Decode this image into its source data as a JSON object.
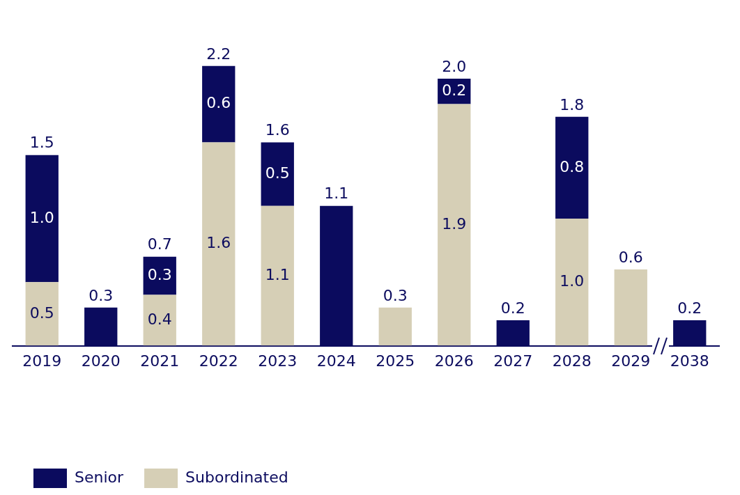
{
  "chart_data": {
    "type": "bar",
    "stacked": true,
    "categories": [
      "2019",
      "2020",
      "2021",
      "2022",
      "2023",
      "2024",
      "2025",
      "2026",
      "2027",
      "2028",
      "2029",
      "2038"
    ],
    "series": [
      {
        "name": "Subordinated",
        "color": "#d6cfb6",
        "values": [
          0.5,
          null,
          0.4,
          1.6,
          1.1,
          null,
          0.3,
          1.9,
          null,
          1.0,
          0.6,
          null
        ],
        "value_labels": [
          "0.5",
          null,
          "0.4",
          "1.6",
          "1.1",
          null,
          null,
          "1.9",
          null,
          "1.0",
          null,
          null
        ]
      },
      {
        "name": "Senior",
        "color": "#0b0b5e",
        "values": [
          1.0,
          0.3,
          0.3,
          0.6,
          0.5,
          1.1,
          null,
          0.2,
          0.2,
          0.8,
          null,
          0.2
        ],
        "value_labels": [
          "1.0",
          null,
          "0.3",
          "0.6",
          "0.5",
          null,
          null,
          "0.2",
          null,
          "0.8",
          null,
          null
        ]
      }
    ],
    "totals": [
      "1.5",
      "0.3",
      "0.7",
      "2.2",
      "1.6",
      "1.1",
      "0.3",
      "2.0",
      "0.2",
      "1.8",
      "0.6",
      "0.2"
    ],
    "legend": "bottom left",
    "grid": false
  }
}
